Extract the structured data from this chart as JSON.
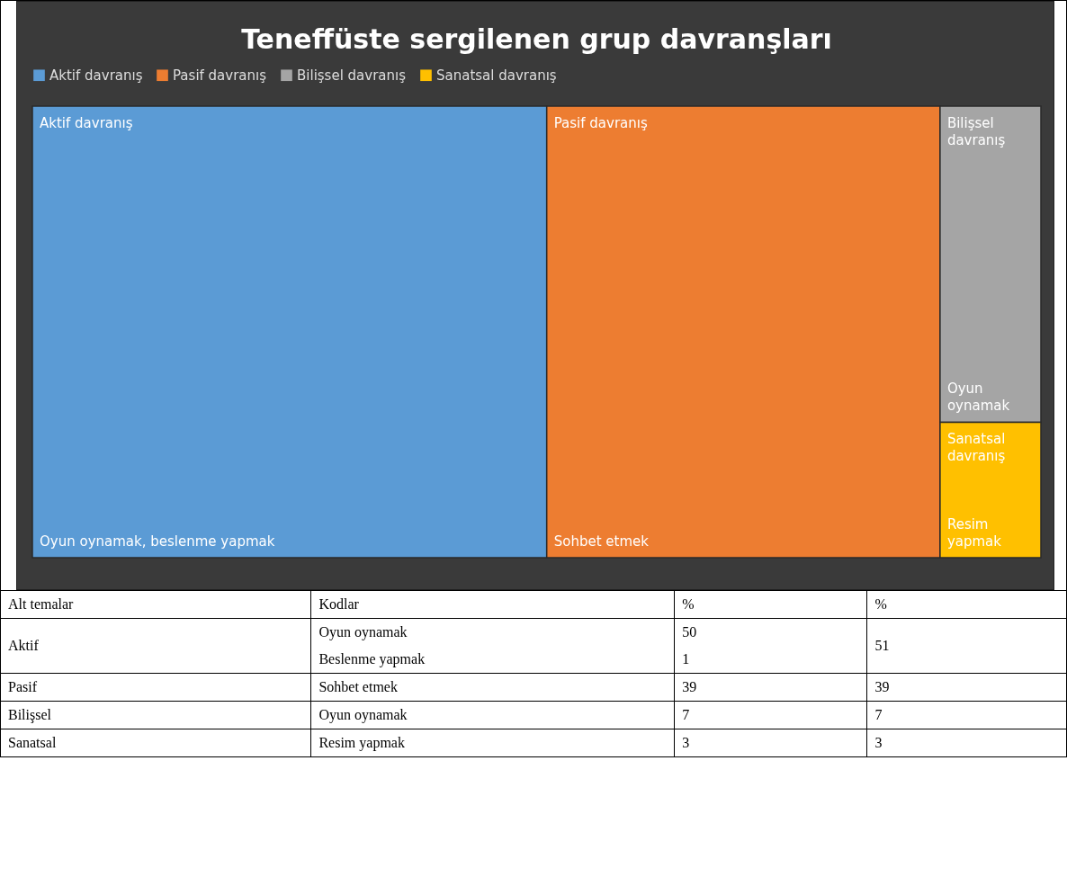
{
  "chart_data": [
    {
      "type": "other",
      "title": "Teneffüste sergilenen grup davranşları",
      "categories": [
        "Aktif davranış",
        "Pasif davranış",
        "Bilişsel davranış",
        "Sanatsal davranış"
      ],
      "colors": [
        "#5b9bd5",
        "#ed7d31",
        "#a5a5a5",
        "#ffc000"
      ],
      "annotations": [
        "Oyun oynamak, beslenme yapmak",
        "Sohbet etmek",
        "Oyun oynamak",
        "Resim yapmak"
      ]
    },
    {
      "type": "other",
      "categories": [
        "Aktif",
        "Pasif",
        "Bilişsel",
        "Sanatsal"
      ],
      "values": [
        51,
        39,
        7,
        3
      ],
      "series": [
        {
          "values": [
            50,
            39,
            7,
            3
          ]
        },
        {
          "values": [
            1,
            null,
            null,
            null
          ]
        }
      ],
      "data_labels": true,
      "annotations": [
        "Alt temalar",
        "Kodlar",
        "%",
        "%",
        "Oyun oynamak",
        "Beslenme yapmak",
        "Sohbet etmek",
        "Oyun oynamak",
        "Resim yapmak"
      ]
    }
  ]
}
